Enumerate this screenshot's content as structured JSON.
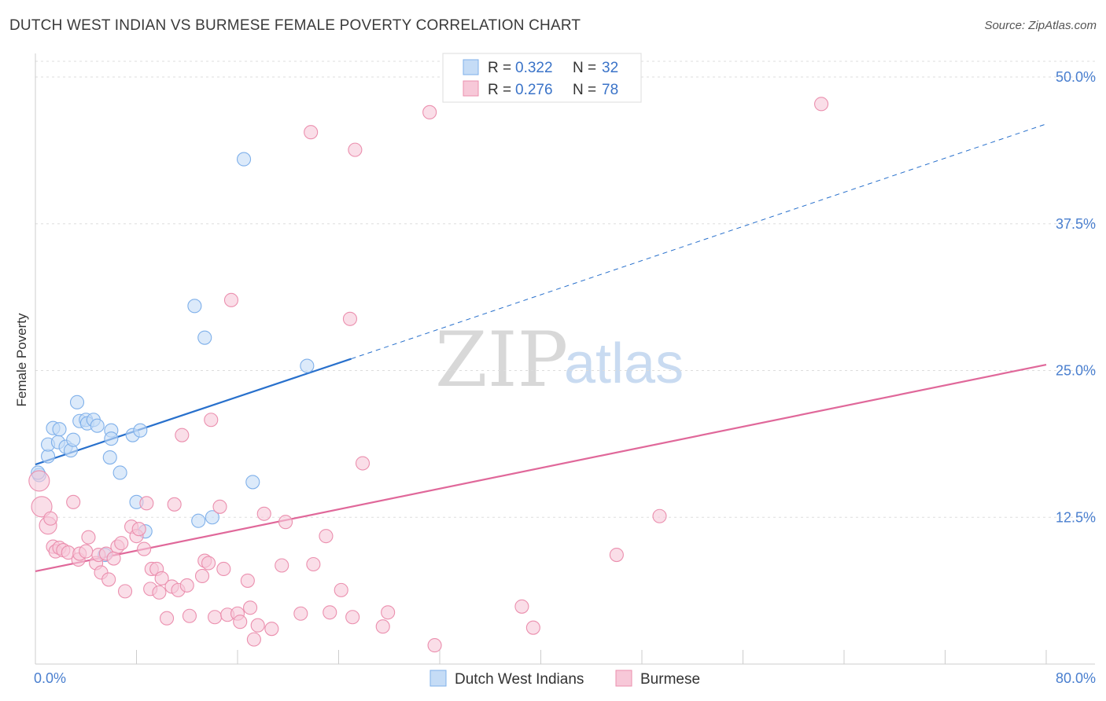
{
  "title": "DUTCH WEST INDIAN VS BURMESE FEMALE POVERTY CORRELATION CHART",
  "source": "Source: ZipAtlas.com",
  "watermark": {
    "zip": "ZIP",
    "atlas": "atlas"
  },
  "colors": {
    "blue": "#7fb0ea",
    "blue_fill": "#c5dcf6",
    "blue_line": "#2870cc",
    "pink": "#eb8fae",
    "pink_fill": "#f7c8d8",
    "pink_line": "#e0689a",
    "grid": "#dddddd",
    "tick_text": "#4a7fcf"
  },
  "legend": {
    "r_label": "R =",
    "n_label": "N =",
    "rows": [
      {
        "series": "Dutch West Indians",
        "r": "0.322",
        "n": "32"
      },
      {
        "series": "Burmese",
        "r": "0.276",
        "n": "78"
      }
    ]
  },
  "chart_data": {
    "type": "scatter",
    "title": "DUTCH WEST INDIAN VS BURMESE FEMALE POVERTY CORRELATION CHART",
    "xlabel": "",
    "ylabel": "Female Poverty",
    "xlim": [
      0,
      80
    ],
    "ylim": [
      0,
      50
    ],
    "x_tick_labels": [
      "0.0%",
      "80.0%"
    ],
    "y_ticks": [
      12.5,
      25.0,
      37.5,
      50.0
    ],
    "y_tick_labels": [
      "12.5%",
      "25.0%",
      "37.5%",
      "50.0%"
    ],
    "grid": true,
    "series": [
      {
        "name": "Dutch West Indians",
        "r": 0.322,
        "n": 32,
        "points": [
          [
            0.3,
            16.1
          ],
          [
            1.0,
            17.7
          ],
          [
            1.0,
            18.7
          ],
          [
            1.4,
            20.1
          ],
          [
            1.8,
            18.9
          ],
          [
            1.9,
            20.0
          ],
          [
            2.4,
            18.5
          ],
          [
            2.8,
            18.2
          ],
          [
            3.0,
            19.1
          ],
          [
            3.3,
            22.3
          ],
          [
            3.5,
            20.7
          ],
          [
            4.0,
            20.8
          ],
          [
            4.1,
            20.5
          ],
          [
            4.6,
            20.8
          ],
          [
            4.9,
            20.3
          ],
          [
            5.5,
            9.3
          ],
          [
            5.9,
            17.6
          ],
          [
            6.0,
            19.9
          ],
          [
            6.0,
            19.2
          ],
          [
            6.7,
            16.3
          ],
          [
            7.7,
            19.5
          ],
          [
            8.0,
            13.8
          ],
          [
            8.3,
            19.9
          ],
          [
            8.7,
            11.3
          ],
          [
            12.6,
            30.5
          ],
          [
            12.9,
            12.2
          ],
          [
            13.4,
            27.8
          ],
          [
            14.0,
            12.5
          ],
          [
            16.5,
            43.0
          ],
          [
            17.2,
            15.5
          ],
          [
            21.5,
            25.4
          ],
          [
            0.2,
            16.3
          ]
        ],
        "trend": {
          "x0": 0,
          "y0": 17.0,
          "x1": 25,
          "y1": 26.0,
          "dash_to_x": 80,
          "dash_to_y": 46.0
        }
      },
      {
        "name": "Burmese",
        "r": 0.276,
        "n": 78,
        "points": [
          [
            0.3,
            15.6
          ],
          [
            0.5,
            13.4
          ],
          [
            1.0,
            11.8
          ],
          [
            1.2,
            12.4
          ],
          [
            1.4,
            10.0
          ],
          [
            1.6,
            9.6
          ],
          [
            1.9,
            9.9
          ],
          [
            2.2,
            9.7
          ],
          [
            2.6,
            9.5
          ],
          [
            3.0,
            13.8
          ],
          [
            3.4,
            8.9
          ],
          [
            3.5,
            9.4
          ],
          [
            4.0,
            9.6
          ],
          [
            4.2,
            10.8
          ],
          [
            4.8,
            8.6
          ],
          [
            5.0,
            9.3
          ],
          [
            5.2,
            7.8
          ],
          [
            5.6,
            9.4
          ],
          [
            5.8,
            7.2
          ],
          [
            6.2,
            9.0
          ],
          [
            6.5,
            10.0
          ],
          [
            6.8,
            10.3
          ],
          [
            7.1,
            6.2
          ],
          [
            7.6,
            11.7
          ],
          [
            8.0,
            10.9
          ],
          [
            8.2,
            11.5
          ],
          [
            8.6,
            9.8
          ],
          [
            8.8,
            13.7
          ],
          [
            9.1,
            6.4
          ],
          [
            9.2,
            8.1
          ],
          [
            9.6,
            8.1
          ],
          [
            9.8,
            6.1
          ],
          [
            10.0,
            7.3
          ],
          [
            10.4,
            3.9
          ],
          [
            10.8,
            6.6
          ],
          [
            11.0,
            13.6
          ],
          [
            11.3,
            6.3
          ],
          [
            11.6,
            19.5
          ],
          [
            12.0,
            6.7
          ],
          [
            12.2,
            4.1
          ],
          [
            13.2,
            7.5
          ],
          [
            13.4,
            8.8
          ],
          [
            13.7,
            8.6
          ],
          [
            13.9,
            20.8
          ],
          [
            14.2,
            4.0
          ],
          [
            14.6,
            13.4
          ],
          [
            14.9,
            8.1
          ],
          [
            15.2,
            4.2
          ],
          [
            15.5,
            31.0
          ],
          [
            16.0,
            4.3
          ],
          [
            16.2,
            3.6
          ],
          [
            16.8,
            7.1
          ],
          [
            17.0,
            4.8
          ],
          [
            17.3,
            2.1
          ],
          [
            17.6,
            3.3
          ],
          [
            18.1,
            12.8
          ],
          [
            18.7,
            3.0
          ],
          [
            19.5,
            8.4
          ],
          [
            19.8,
            12.1
          ],
          [
            21.0,
            4.3
          ],
          [
            21.8,
            45.3
          ],
          [
            22.0,
            8.5
          ],
          [
            23.0,
            10.9
          ],
          [
            23.3,
            4.4
          ],
          [
            24.2,
            6.3
          ],
          [
            24.9,
            29.4
          ],
          [
            25.1,
            4.0
          ],
          [
            25.3,
            43.8
          ],
          [
            25.9,
            17.1
          ],
          [
            27.5,
            3.2
          ],
          [
            27.9,
            4.4
          ],
          [
            31.2,
            47.0
          ],
          [
            31.6,
            1.6
          ],
          [
            38.5,
            4.9
          ],
          [
            39.4,
            3.1
          ],
          [
            46.0,
            9.3
          ],
          [
            49.4,
            12.6
          ],
          [
            62.2,
            47.7
          ]
        ],
        "trend": {
          "x0": 0,
          "y0": 7.9,
          "x1": 80,
          "y1": 25.5
        }
      }
    ]
  }
}
